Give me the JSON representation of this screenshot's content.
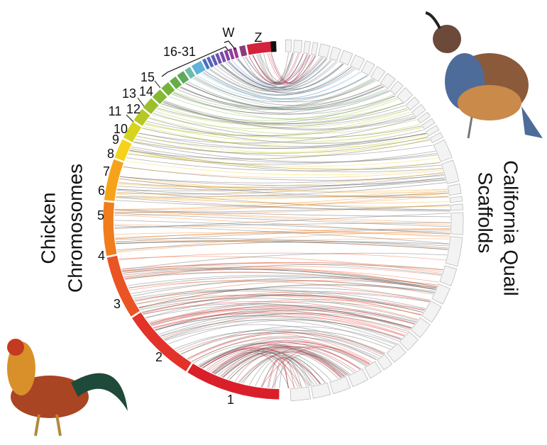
{
  "left_label": [
    "Chicken",
    "Chromosomes"
  ],
  "right_label": [
    "California Quail",
    "Scaffolds"
  ],
  "chromosomes": [
    {
      "label": "1",
      "color": "#d9202a"
    },
    {
      "label": "2",
      "color": "#e2322a"
    },
    {
      "label": "3",
      "color": "#ea5425"
    },
    {
      "label": "4",
      "color": "#f07c1c"
    },
    {
      "label": "5",
      "color": "#f6a31a"
    },
    {
      "label": "6",
      "color": "#f7d21a"
    },
    {
      "label": "7",
      "color": "#d8d41e"
    },
    {
      "label": "8",
      "color": "#b5c823"
    },
    {
      "label": "9",
      "color": "#9cc02a"
    },
    {
      "label": "10",
      "color": "#86b833"
    },
    {
      "label": "11",
      "color": "#74b23a"
    },
    {
      "label": "12",
      "color": "#66ad45"
    },
    {
      "label": "13",
      "color": "#5bab5a"
    },
    {
      "label": "14",
      "color": "#6cbca8"
    },
    {
      "label": "15",
      "color": "#61b3d8"
    },
    {
      "label": "16-31",
      "color": "#4a6fb6"
    },
    {
      "label": "W",
      "color": "#8a3d7a"
    },
    {
      "label": "Z",
      "color": "#d3223e"
    }
  ]
}
